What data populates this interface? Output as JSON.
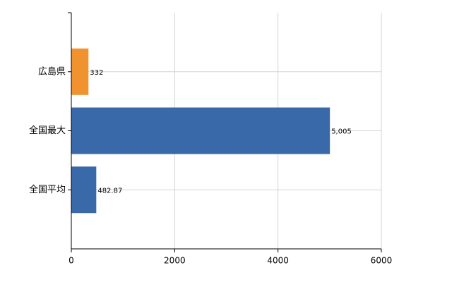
{
  "chart_data": {
    "type": "bar",
    "orientation": "horizontal",
    "categories": [
      "広島県",
      "全国最大",
      "全国平均"
    ],
    "values": [
      332,
      5005,
      482.87
    ],
    "value_labels": [
      "332",
      "5,005",
      "482.87"
    ],
    "colors": [
      "#f0922e",
      "#3a69a9",
      "#3a69a9"
    ],
    "xlim": [
      0,
      6000
    ],
    "xticks": [
      0,
      2000,
      4000,
      6000
    ],
    "grid": true
  }
}
